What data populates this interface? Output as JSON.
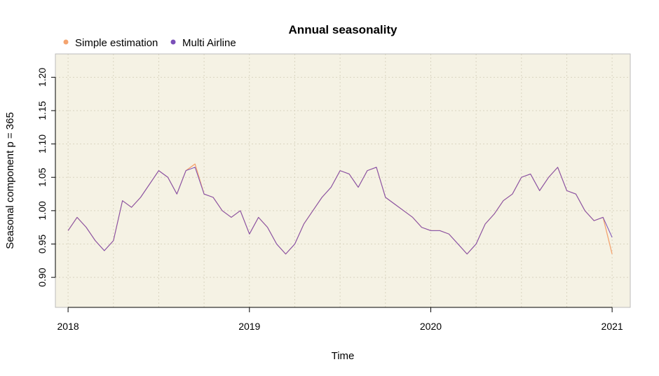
{
  "chart_data": {
    "type": "line",
    "title": "Annual seasonality",
    "xlabel": "Time",
    "ylabel": "Seasonal component p = 365",
    "xlim": [
      2017.93,
      2021.1
    ],
    "ylim": [
      0.855,
      1.235
    ],
    "x_ticks": [
      2018,
      2019,
      2020,
      2021
    ],
    "x_tick_labels": [
      "2018",
      "2019",
      "2020",
      "2021"
    ],
    "y_ticks": [
      0.9,
      0.95,
      1.0,
      1.05,
      1.1,
      1.15,
      1.2
    ],
    "y_tick_labels": [
      "0.90",
      "0.95",
      "1.00",
      "1.05",
      "1.10",
      "1.15",
      "1.20"
    ],
    "grid": true,
    "background_color": "#f5f2e4",
    "legend": {
      "placement": "top-left",
      "orientation": "horizontal"
    },
    "series": [
      {
        "name": "Simple estimation",
        "color": "#f4a470",
        "x": [
          2018.0,
          2018.05,
          2018.1,
          2018.15,
          2018.2,
          2018.25,
          2018.3,
          2018.35,
          2018.4,
          2018.45,
          2018.5,
          2018.55,
          2018.6,
          2018.65,
          2018.7,
          2018.75,
          2018.8,
          2018.85,
          2018.9,
          2018.95,
          2019.0,
          2019.05,
          2019.1,
          2019.15,
          2019.2,
          2019.25,
          2019.3,
          2019.35,
          2019.4,
          2019.45,
          2019.5,
          2019.55,
          2019.6,
          2019.65,
          2019.7,
          2019.75,
          2019.8,
          2019.85,
          2019.9,
          2019.95,
          2020.0,
          2020.05,
          2020.1,
          2020.15,
          2020.2,
          2020.25,
          2020.3,
          2020.35,
          2020.4,
          2020.45,
          2020.5,
          2020.55,
          2020.6,
          2020.65,
          2020.7,
          2020.75,
          2020.8,
          2020.85,
          2020.9,
          2020.95,
          2021.0
        ],
        "y": [
          0.97,
          0.99,
          0.975,
          0.955,
          0.94,
          0.955,
          1.015,
          1.005,
          1.02,
          1.04,
          1.06,
          1.05,
          1.025,
          1.06,
          1.07,
          1.025,
          1.02,
          1.0,
          0.99,
          1.0,
          0.965,
          0.99,
          0.975,
          0.95,
          0.935,
          0.95,
          0.98,
          1.0,
          1.02,
          1.035,
          1.06,
          1.055,
          1.035,
          1.06,
          1.065,
          1.02,
          1.01,
          1.0,
          0.99,
          0.975,
          0.97,
          0.97,
          0.965,
          0.95,
          0.935,
          0.95,
          0.98,
          0.995,
          1.015,
          1.025,
          1.05,
          1.055,
          1.03,
          1.05,
          1.065,
          1.03,
          1.025,
          1.0,
          0.985,
          0.99,
          0.935
        ]
      },
      {
        "name": "Multi Airline",
        "color": "#7a4fb8",
        "x": [
          2018.0,
          2018.05,
          2018.1,
          2018.15,
          2018.2,
          2018.25,
          2018.3,
          2018.35,
          2018.4,
          2018.45,
          2018.5,
          2018.55,
          2018.6,
          2018.65,
          2018.7,
          2018.75,
          2018.8,
          2018.85,
          2018.9,
          2018.95,
          2019.0,
          2019.05,
          2019.1,
          2019.15,
          2019.2,
          2019.25,
          2019.3,
          2019.35,
          2019.4,
          2019.45,
          2019.5,
          2019.55,
          2019.6,
          2019.65,
          2019.7,
          2019.75,
          2019.8,
          2019.85,
          2019.9,
          2019.95,
          2020.0,
          2020.05,
          2020.1,
          2020.15,
          2020.2,
          2020.25,
          2020.3,
          2020.35,
          2020.4,
          2020.45,
          2020.5,
          2020.55,
          2020.6,
          2020.65,
          2020.7,
          2020.75,
          2020.8,
          2020.85,
          2020.9,
          2020.95,
          2021.0
        ],
        "y": [
          0.97,
          0.99,
          0.975,
          0.955,
          0.94,
          0.955,
          1.015,
          1.005,
          1.02,
          1.04,
          1.06,
          1.05,
          1.025,
          1.06,
          1.065,
          1.025,
          1.02,
          1.0,
          0.99,
          1.0,
          0.965,
          0.99,
          0.975,
          0.95,
          0.935,
          0.95,
          0.98,
          1.0,
          1.02,
          1.035,
          1.06,
          1.055,
          1.035,
          1.06,
          1.065,
          1.02,
          1.01,
          1.0,
          0.99,
          0.975,
          0.97,
          0.97,
          0.965,
          0.95,
          0.935,
          0.95,
          0.98,
          0.995,
          1.015,
          1.025,
          1.05,
          1.055,
          1.03,
          1.05,
          1.065,
          1.03,
          1.025,
          1.0,
          0.985,
          0.99,
          0.96
        ]
      }
    ]
  }
}
